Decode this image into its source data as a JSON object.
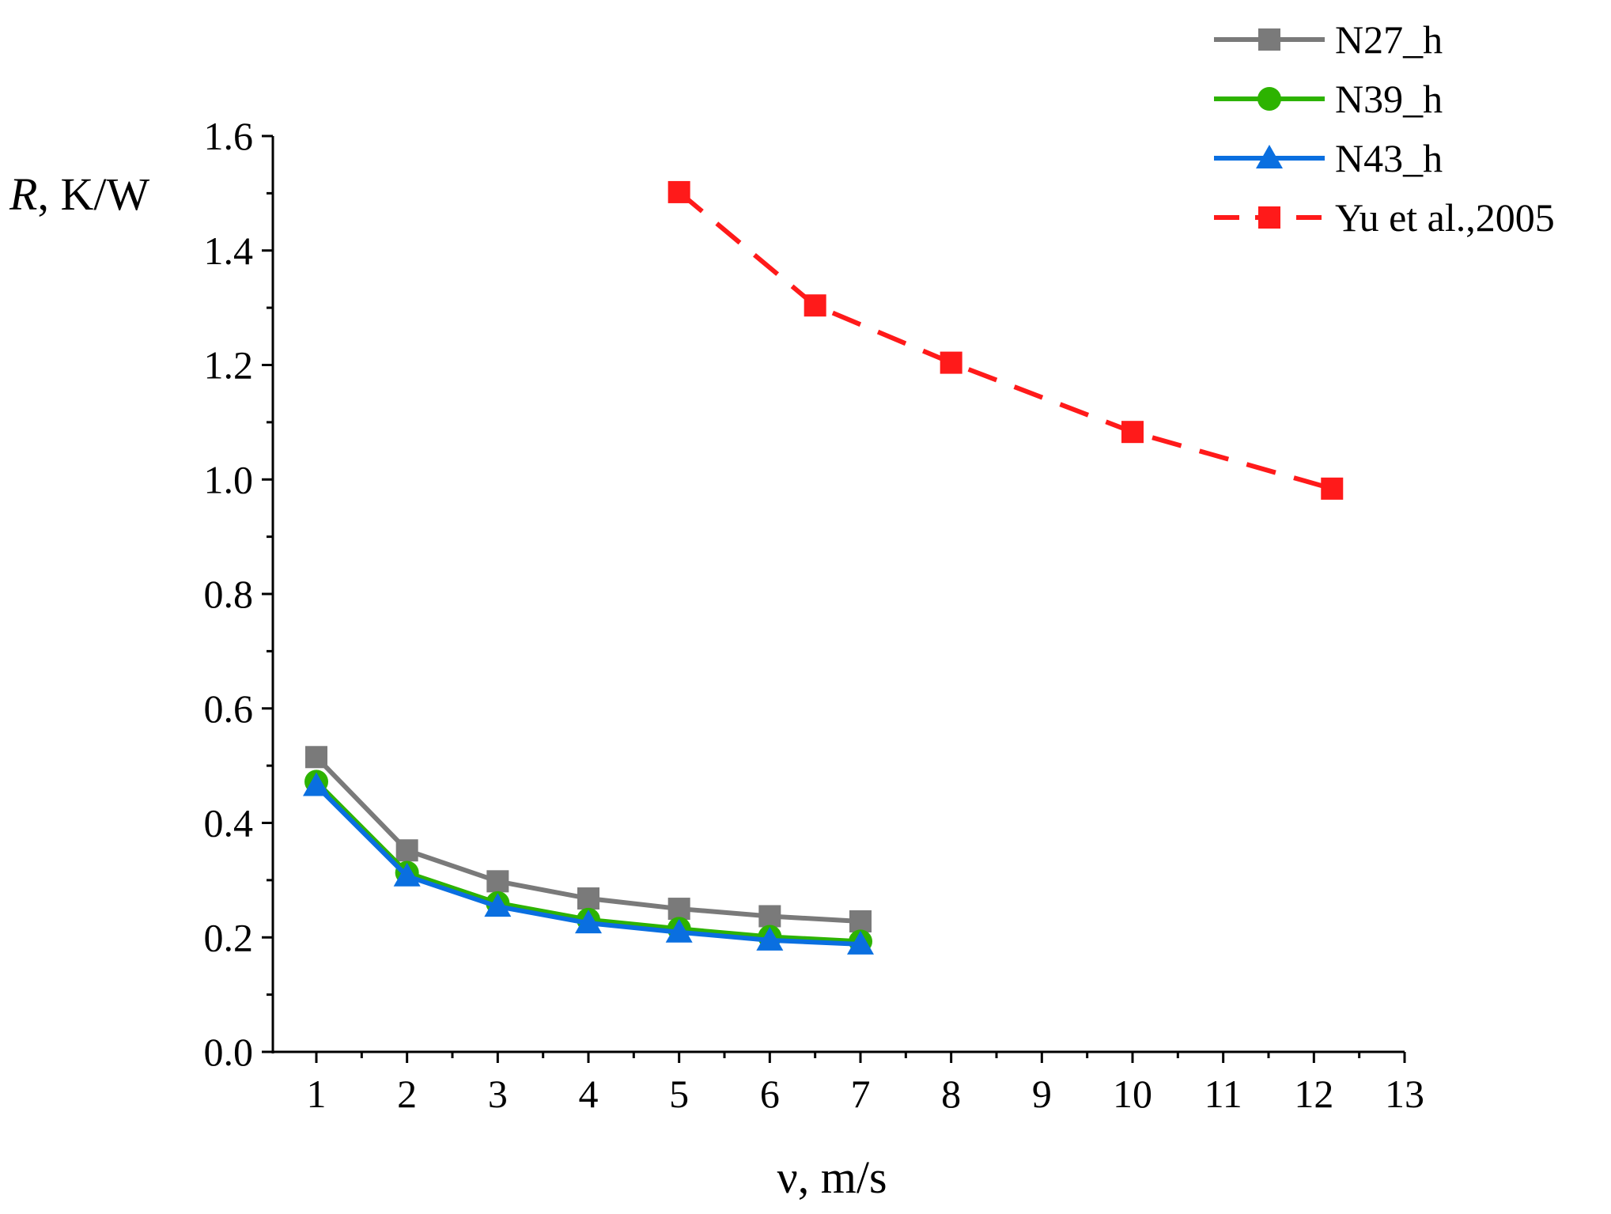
{
  "chart_data": {
    "type": "line",
    "title": "",
    "xlabel": "ν, m/s",
    "ylabel_italic": "R",
    "ylabel_rest": ", K/W",
    "xlim": [
      0.5,
      13
    ],
    "ylim": [
      0,
      1.6
    ],
    "xticks": [
      1,
      2,
      3,
      4,
      5,
      6,
      7,
      8,
      9,
      10,
      11,
      12,
      13
    ],
    "xtick_labels": [
      "1",
      "2",
      "3",
      "4",
      "5",
      "6",
      "7",
      "8",
      "9",
      "10",
      "11",
      "12",
      "13"
    ],
    "yticks": [
      0,
      0.2,
      0.4,
      0.6,
      0.8,
      1.0,
      1.2,
      1.4,
      1.6
    ],
    "ytick_labels": [
      "0.0",
      "0.2",
      "0.4",
      "0.6",
      "0.8",
      "1.0",
      "1.2",
      "1.4",
      "1.6"
    ],
    "grid": false,
    "legend_position": "top-right",
    "series": [
      {
        "name": "N27_h",
        "color": "#7a7a7a",
        "marker": "square",
        "dashed": false,
        "x": [
          1,
          2,
          3,
          4,
          5,
          6,
          7
        ],
        "y": [
          0.515,
          0.352,
          0.298,
          0.268,
          0.25,
          0.237,
          0.228
        ]
      },
      {
        "name": "N39_h",
        "color": "#2db300",
        "marker": "circle",
        "dashed": false,
        "x": [
          1,
          2,
          3,
          4,
          5,
          6,
          7
        ],
        "y": [
          0.472,
          0.313,
          0.26,
          0.231,
          0.215,
          0.201,
          0.193
        ]
      },
      {
        "name": "N43_h",
        "color": "#0a6fe0",
        "marker": "triangle",
        "dashed": false,
        "x": [
          1,
          2,
          3,
          4,
          5,
          6,
          7
        ],
        "y": [
          0.465,
          0.307,
          0.254,
          0.225,
          0.209,
          0.195,
          0.188
        ]
      },
      {
        "name": "Yu et al.,2005",
        "color": "#ff1a1a",
        "marker": "square",
        "dashed": true,
        "x": [
          5,
          6.5,
          8,
          10,
          12.2
        ],
        "y": [
          1.502,
          1.304,
          1.204,
          1.083,
          0.984
        ]
      }
    ]
  }
}
